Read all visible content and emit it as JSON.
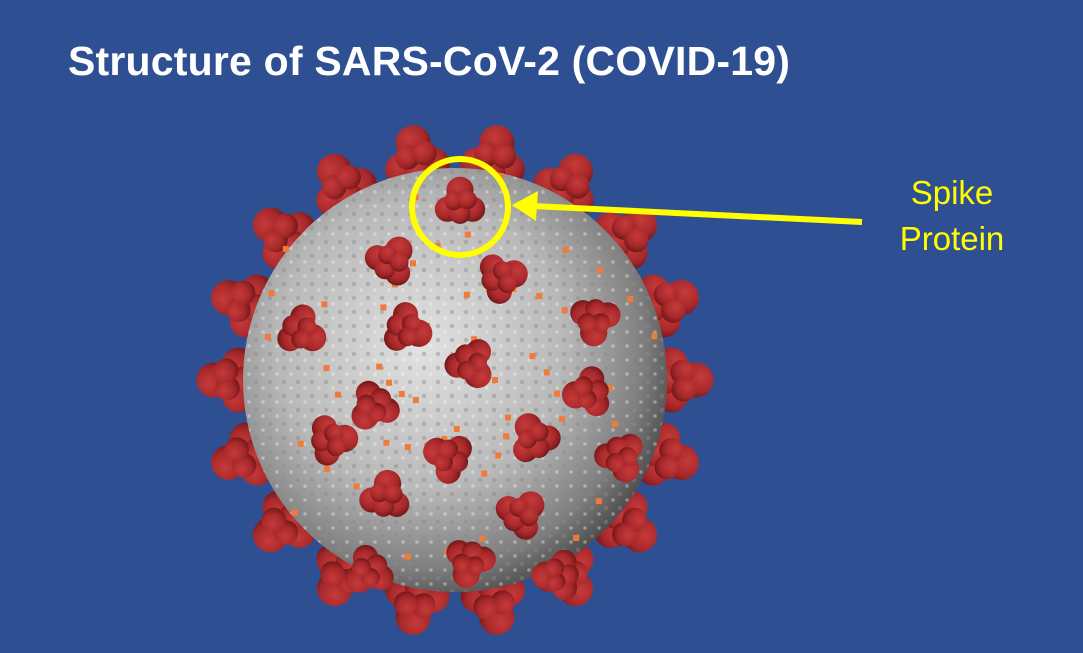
{
  "slide": {
    "title": "Structure of SARS-CoV-2 (COVID-19)",
    "background_color": "#2f4f93"
  },
  "callout": {
    "label_line1": "Spike",
    "label_line2": "Protein",
    "color": "#ffff00"
  },
  "virus": {
    "membrane_color": "#c9c9c9",
    "spike_color": "#a8292b",
    "small_protein_color": "#f07a3a"
  }
}
